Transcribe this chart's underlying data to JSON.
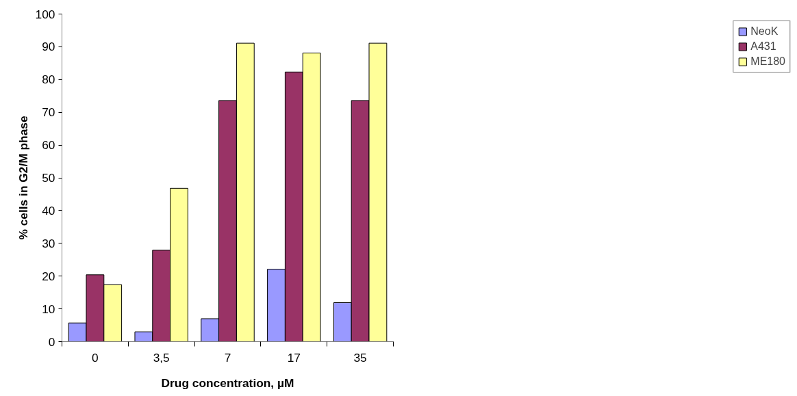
{
  "chart_data": {
    "type": "bar",
    "xlabel": "Drug concentration, µM",
    "ylabel": "% cells in G2/M phase",
    "categories": [
      "0",
      "3,5",
      "7",
      "17",
      "35"
    ],
    "series": [
      {
        "name": "NeoK",
        "color": "#9999ff",
        "values": [
          5.7,
          3.0,
          7.0,
          22.1,
          11.9
        ]
      },
      {
        "name": "A431",
        "color": "#993366",
        "values": [
          20.4,
          27.9,
          73.6,
          82.3,
          73.6
        ]
      },
      {
        "name": "ME180",
        "color": "#ffff99",
        "values": [
          17.4,
          46.8,
          91.1,
          88.1,
          91.1
        ]
      }
    ],
    "ylim": [
      0,
      100
    ],
    "yticks": [
      0,
      10,
      20,
      30,
      40,
      50,
      60,
      70,
      80,
      90,
      100
    ],
    "grid": false,
    "legend": "right"
  }
}
